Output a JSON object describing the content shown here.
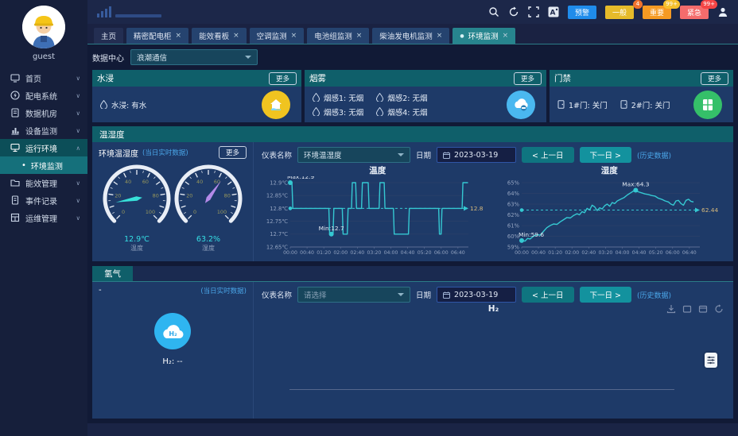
{
  "labels": {
    "more": "更多",
    "close": "×",
    "chevron_down": "∨",
    "chevron_up": "∧",
    "dot": "●",
    "bullet": "•"
  },
  "user": {
    "name": "guest"
  },
  "sidebar": {
    "items": [
      {
        "label": "首页"
      },
      {
        "label": "配电系统"
      },
      {
        "label": "数据机房"
      },
      {
        "label": "设备监测"
      },
      {
        "label": "运行环境"
      },
      {
        "label": "能效管理"
      },
      {
        "label": "事件记录"
      },
      {
        "label": "运维管理"
      }
    ],
    "active_submenu": {
      "label": "环境监测"
    }
  },
  "header": {
    "alerts": [
      {
        "label": "预警",
        "color": "#1f8ceb",
        "badge": "",
        "badge_color": ""
      },
      {
        "label": "一般",
        "color": "#e6bb2a",
        "badge": "4",
        "badge_color": "#f0722d"
      },
      {
        "label": "重要",
        "color": "#f59a23",
        "badge": "99+",
        "badge_color": "#f5c02d"
      },
      {
        "label": "紧急",
        "color": "#f56c6c",
        "badge": "99+",
        "badge_color": "#f54545"
      }
    ]
  },
  "tabs": [
    {
      "label": "主页",
      "closable": false,
      "active": false
    },
    {
      "label": "精密配电柜",
      "closable": true,
      "active": false
    },
    {
      "label": "能效看板",
      "closable": true,
      "active": false
    },
    {
      "label": "空调监测",
      "closable": true,
      "active": false
    },
    {
      "label": "电池组监测",
      "closable": true,
      "active": false
    },
    {
      "label": "柴油发电机监测",
      "closable": true,
      "active": false
    },
    {
      "label": "环境监测",
      "closable": true,
      "active": true
    }
  ],
  "datacenter": {
    "label": "数据中心",
    "value": "浪潮通信"
  },
  "cards": {
    "water": {
      "title": "水浸",
      "status": "水浸: 有水"
    },
    "smoke": {
      "title": "烟雾",
      "items": [
        "烟感1: 无烟",
        "烟感2: 无烟",
        "烟感3: 无烟",
        "烟感4: 无烟"
      ]
    },
    "door": {
      "title": "门禁",
      "items": [
        "1#门: 关门",
        "2#门: 关门"
      ]
    }
  },
  "temp_hum": {
    "section_title": "温湿度",
    "panel_title": "环境温湿度",
    "realtime_note": "(当日实时数据)",
    "controls": {
      "meter_label": "仪表名称",
      "meter_value": "环境温湿度",
      "date_label": "日期",
      "date_value": "2023-03-19",
      "prev": "<  上一日",
      "next": "下一日  >",
      "history": "(历史数据)"
    }
  },
  "hydrogen": {
    "section_title": "氢气",
    "panel_title": "-",
    "realtime_note": "(当日实时数据)",
    "icon_text": "H₂",
    "value_text": "H₂: --",
    "controls": {
      "meter_label": "仪表名称",
      "meter_value": "请选择",
      "date_label": "日期",
      "date_value": "2023-03-19",
      "prev": "<  上一日",
      "next": "下一日  >",
      "history": "(历史数据)"
    },
    "chart_title": "H₂"
  },
  "chart_data": {
    "gauges": [
      {
        "type": "gauge",
        "label": "温度",
        "value": 12.9,
        "display": "12.9℃",
        "range": [
          0,
          100
        ],
        "ticks": [
          0,
          20,
          40,
          60,
          80,
          100
        ],
        "needle_color": "#38e1d9"
      },
      {
        "type": "gauge",
        "label": "湿度",
        "value": 63.2,
        "display": "63.2%",
        "range": [
          0,
          100
        ],
        "ticks": [
          0,
          20,
          40,
          60,
          80,
          100
        ],
        "needle_color": "#b48ae8"
      }
    ],
    "temperature": {
      "type": "line",
      "title": "温度",
      "color": "#35c8d2",
      "ylim": [
        12.65,
        12.9
      ],
      "yticks": [
        {
          "v": 12.9,
          "label": "12.9℃"
        },
        {
          "v": 12.85,
          "label": "12.85℃"
        },
        {
          "v": 12.8,
          "label": "12.8℃"
        },
        {
          "v": 12.75,
          "label": "12.75℃"
        },
        {
          "v": 12.7,
          "label": "12.7℃"
        },
        {
          "v": 12.65,
          "label": "12.65℃"
        }
      ],
      "xticks": [
        "00:00",
        "00:40",
        "01:20",
        "02:00",
        "02:40",
        "03:20",
        "04:00",
        "04:40",
        "05:20",
        "06:00",
        "06:40"
      ],
      "xstep": 40,
      "xmax": 425,
      "points": [
        [
          0,
          12.9
        ],
        [
          4,
          12.9
        ],
        [
          6,
          12.8
        ],
        [
          92,
          12.8
        ],
        [
          94,
          12.7
        ],
        [
          102,
          12.7
        ],
        [
          104,
          12.8
        ],
        [
          124,
          12.8
        ],
        [
          126,
          12.7
        ],
        [
          136,
          12.7
        ],
        [
          138,
          12.8
        ],
        [
          146,
          12.8
        ],
        [
          148,
          12.9
        ],
        [
          156,
          12.9
        ],
        [
          158,
          12.8
        ],
        [
          170,
          12.8
        ],
        [
          172,
          12.9
        ],
        [
          186,
          12.9
        ],
        [
          188,
          12.8
        ],
        [
          212,
          12.8
        ],
        [
          214,
          12.9
        ],
        [
          224,
          12.9
        ],
        [
          226,
          12.8
        ],
        [
          246,
          12.8
        ],
        [
          248,
          12.7
        ],
        [
          282,
          12.7
        ],
        [
          284,
          12.8
        ],
        [
          354,
          12.8
        ],
        [
          356,
          12.7
        ],
        [
          360,
          12.7
        ],
        [
          362,
          12.8
        ],
        [
          410,
          12.8
        ],
        [
          412,
          12.9
        ],
        [
          424,
          12.9
        ]
      ],
      "markers": [
        {
          "x": 0,
          "y": 12.9,
          "label": "Max:12.9"
        },
        {
          "x": 98,
          "y": 12.7,
          "label": "Min:12.7"
        }
      ],
      "refline": {
        "value": 12.8,
        "label": "12.8"
      }
    },
    "humidity": {
      "type": "line",
      "title": "湿度",
      "color": "#35c8d2",
      "ylim": [
        59,
        65
      ],
      "yticks": [
        {
          "v": 65,
          "label": "65%"
        },
        {
          "v": 64,
          "label": "64%"
        },
        {
          "v": 63,
          "label": "63%"
        },
        {
          "v": 62,
          "label": "62%"
        },
        {
          "v": 61,
          "label": "61%"
        },
        {
          "v": 60,
          "label": "60%"
        },
        {
          "v": 59,
          "label": "59%"
        }
      ],
      "xticks": [
        "00:00",
        "00:40",
        "01:20",
        "02:00",
        "02:40",
        "03:20",
        "04:00",
        "04:40",
        "05:20",
        "06:00",
        "06:40"
      ],
      "xstep": 40,
      "xmax": 425,
      "points": [
        [
          0,
          59.6
        ],
        [
          8,
          59.55
        ],
        [
          14,
          59.8
        ],
        [
          20,
          59.75
        ],
        [
          28,
          60.0
        ],
        [
          36,
          60.15
        ],
        [
          44,
          60.1
        ],
        [
          52,
          60.45
        ],
        [
          60,
          60.8
        ],
        [
          68,
          61.0
        ],
        [
          76,
          61.15
        ],
        [
          84,
          61.1
        ],
        [
          92,
          61.35
        ],
        [
          100,
          61.55
        ],
        [
          108,
          61.75
        ],
        [
          116,
          61.7
        ],
        [
          124,
          61.95
        ],
        [
          132,
          62.1
        ],
        [
          138,
          62.0
        ],
        [
          144,
          62.3
        ],
        [
          150,
          62.2
        ],
        [
          156,
          62.6
        ],
        [
          162,
          62.45
        ],
        [
          168,
          62.9
        ],
        [
          174,
          62.75
        ],
        [
          180,
          62.4
        ],
        [
          186,
          62.65
        ],
        [
          192,
          62.55
        ],
        [
          198,
          62.85
        ],
        [
          204,
          63.0
        ],
        [
          210,
          62.8
        ],
        [
          216,
          63.15
        ],
        [
          222,
          63.05
        ],
        [
          228,
          63.3
        ],
        [
          236,
          63.45
        ],
        [
          244,
          63.6
        ],
        [
          252,
          63.85
        ],
        [
          260,
          64.05
        ],
        [
          268,
          64.25
        ],
        [
          272,
          64.3
        ],
        [
          278,
          64.15
        ],
        [
          286,
          64.05
        ],
        [
          294,
          63.95
        ],
        [
          302,
          63.9
        ],
        [
          310,
          63.8
        ],
        [
          318,
          63.75
        ],
        [
          326,
          63.55
        ],
        [
          334,
          63.45
        ],
        [
          342,
          63.3
        ],
        [
          350,
          63.2
        ],
        [
          356,
          63.0
        ],
        [
          362,
          62.9
        ],
        [
          368,
          63.3
        ],
        [
          374,
          63.35
        ],
        [
          380,
          63.05
        ],
        [
          386,
          62.9
        ],
        [
          392,
          63.35
        ],
        [
          398,
          63.45
        ],
        [
          404,
          63.25
        ],
        [
          410,
          63.2
        ]
      ],
      "markers": [
        {
          "x": 272,
          "y": 64.3,
          "label": "Max:64.3"
        },
        {
          "x": 0,
          "y": 59.6,
          "label": "Min:59.6"
        }
      ],
      "refline": {
        "value": 62.44,
        "label": "62.44"
      }
    },
    "hydrogen": {
      "type": "line",
      "title": "H₂",
      "points": [],
      "empty": true
    }
  },
  "icons": {
    "toolbox": [
      "save-image",
      "restore",
      "data-view",
      "refresh"
    ],
    "topbar": [
      "search",
      "refresh",
      "fullscreen",
      "font-size",
      "user"
    ]
  }
}
